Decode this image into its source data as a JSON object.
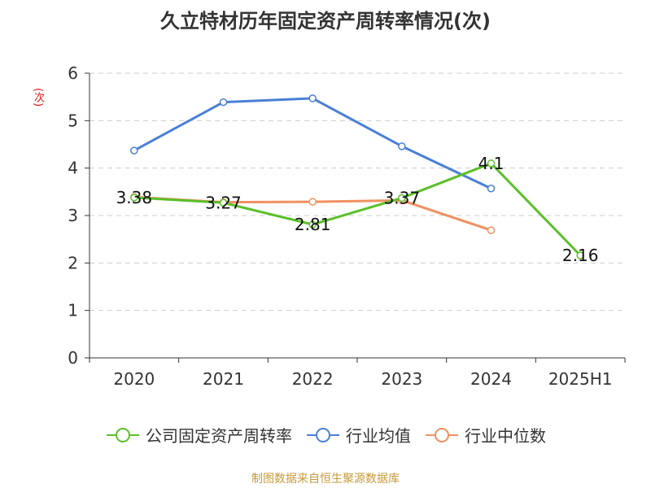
{
  "chart_data": {
    "type": "line",
    "title": "久立特材历年固定资产周转率情况(次)",
    "ylabel": "(次)",
    "xlabel": "",
    "categories": [
      "2020",
      "2021",
      "2022",
      "2023",
      "2024",
      "2025H1"
    ],
    "ylim": [
      0,
      6
    ],
    "yticks": [
      0,
      1,
      2,
      3,
      4,
      5,
      6
    ],
    "grid": true,
    "legend_position": "bottom",
    "series": [
      {
        "name": "公司固定资产周转率",
        "color": "#5cbf2a",
        "labeled": true,
        "values": [
          3.38,
          3.27,
          2.81,
          3.37,
          4.1,
          2.16
        ]
      },
      {
        "name": "行业均值",
        "color": "#4a7fd6",
        "labeled": false,
        "values": [
          4.37,
          5.39,
          5.47,
          4.46,
          3.57,
          null
        ]
      },
      {
        "name": "行业中位数",
        "color": "#f09060",
        "labeled": false,
        "values": [
          3.39,
          3.28,
          3.29,
          3.32,
          2.69,
          null
        ]
      }
    ]
  },
  "source_note": "制图数据来自恒生聚源数据库"
}
